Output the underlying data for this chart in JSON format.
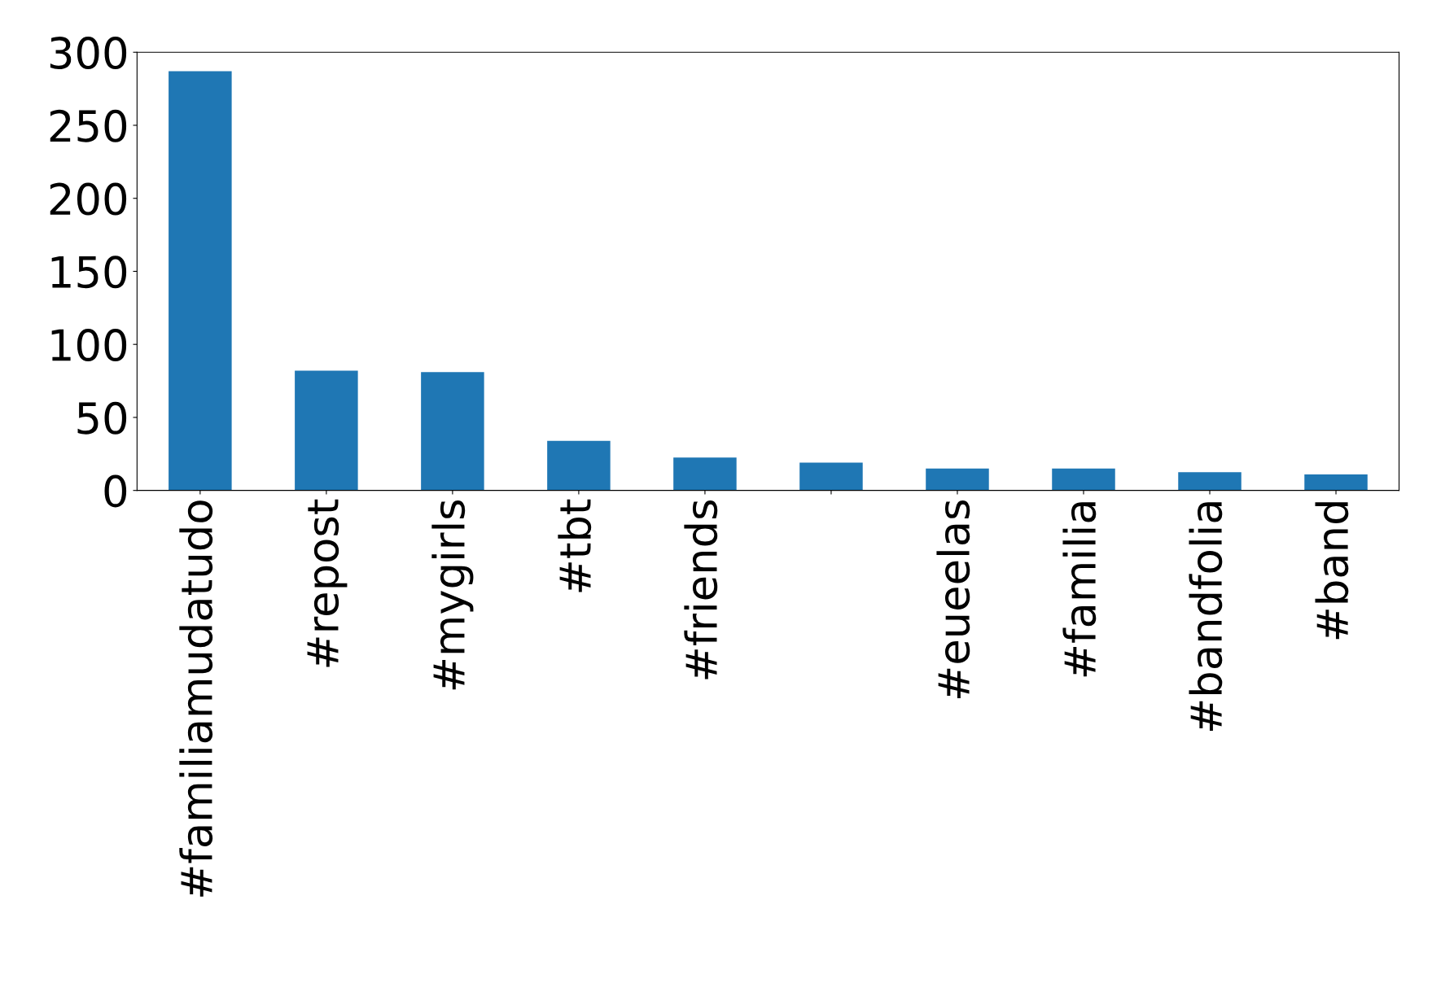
{
  "chart_data": {
    "type": "bar",
    "categories": [
      "#familiamudatudo",
      "#repost",
      "#mygirls",
      "#tbt",
      "#friends",
      null,
      "#eueelas",
      "#familia",
      "#bandfolia",
      "#band"
    ],
    "values": [
      287,
      82,
      81,
      34,
      22.5,
      19,
      15,
      15,
      12.5,
      11
    ],
    "color": "#1f77b4",
    "ylim": [
      0,
      300
    ],
    "yticks": [
      0,
      50,
      100,
      150,
      200,
      250,
      300
    ],
    "grid": false,
    "legend": false
  }
}
